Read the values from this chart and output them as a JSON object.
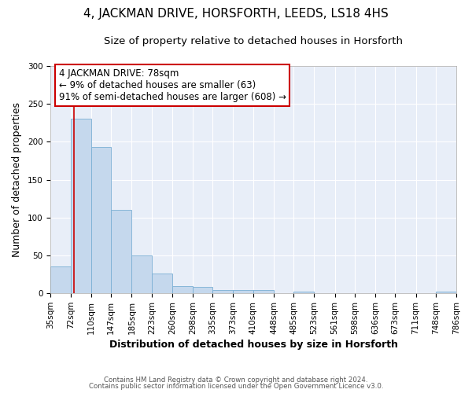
{
  "title": "4, JACKMAN DRIVE, HORSFORTH, LEEDS, LS18 4HS",
  "subtitle": "Size of property relative to detached houses in Horsforth",
  "xlabel": "Distribution of detached houses by size in Horsforth",
  "ylabel": "Number of detached properties",
  "bin_edges": [
    35,
    72,
    110,
    147,
    185,
    223,
    260,
    298,
    335,
    373,
    410,
    448,
    485,
    523,
    561,
    598,
    636,
    673,
    711,
    748,
    786
  ],
  "bin_counts": [
    35,
    230,
    193,
    110,
    50,
    26,
    10,
    9,
    4,
    4,
    4,
    0,
    2,
    0,
    0,
    0,
    0,
    0,
    0,
    2
  ],
  "bar_color": "#c5d8ed",
  "bar_edgecolor": "#7bafd4",
  "property_line_x": 78,
  "property_line_color": "#cc0000",
  "ylim": [
    0,
    300
  ],
  "yticks": [
    0,
    50,
    100,
    150,
    200,
    250,
    300
  ],
  "annotation_text": "4 JACKMAN DRIVE: 78sqm\n← 9% of detached houses are smaller (63)\n91% of semi-detached houses are larger (608) →",
  "annotation_box_edgecolor": "#cc0000",
  "annotation_box_facecolor": "#ffffff",
  "footer_line1": "Contains HM Land Registry data © Crown copyright and database right 2024.",
  "footer_line2": "Contains public sector information licensed under the Open Government Licence v3.0.",
  "background_color": "#ffffff",
  "plot_background_color": "#e8eef8",
  "title_fontsize": 11,
  "subtitle_fontsize": 9.5,
  "axis_label_fontsize": 9,
  "tick_label_fontsize": 7.5,
  "annotation_fontsize": 8.5,
  "footer_fontsize": 6.2
}
